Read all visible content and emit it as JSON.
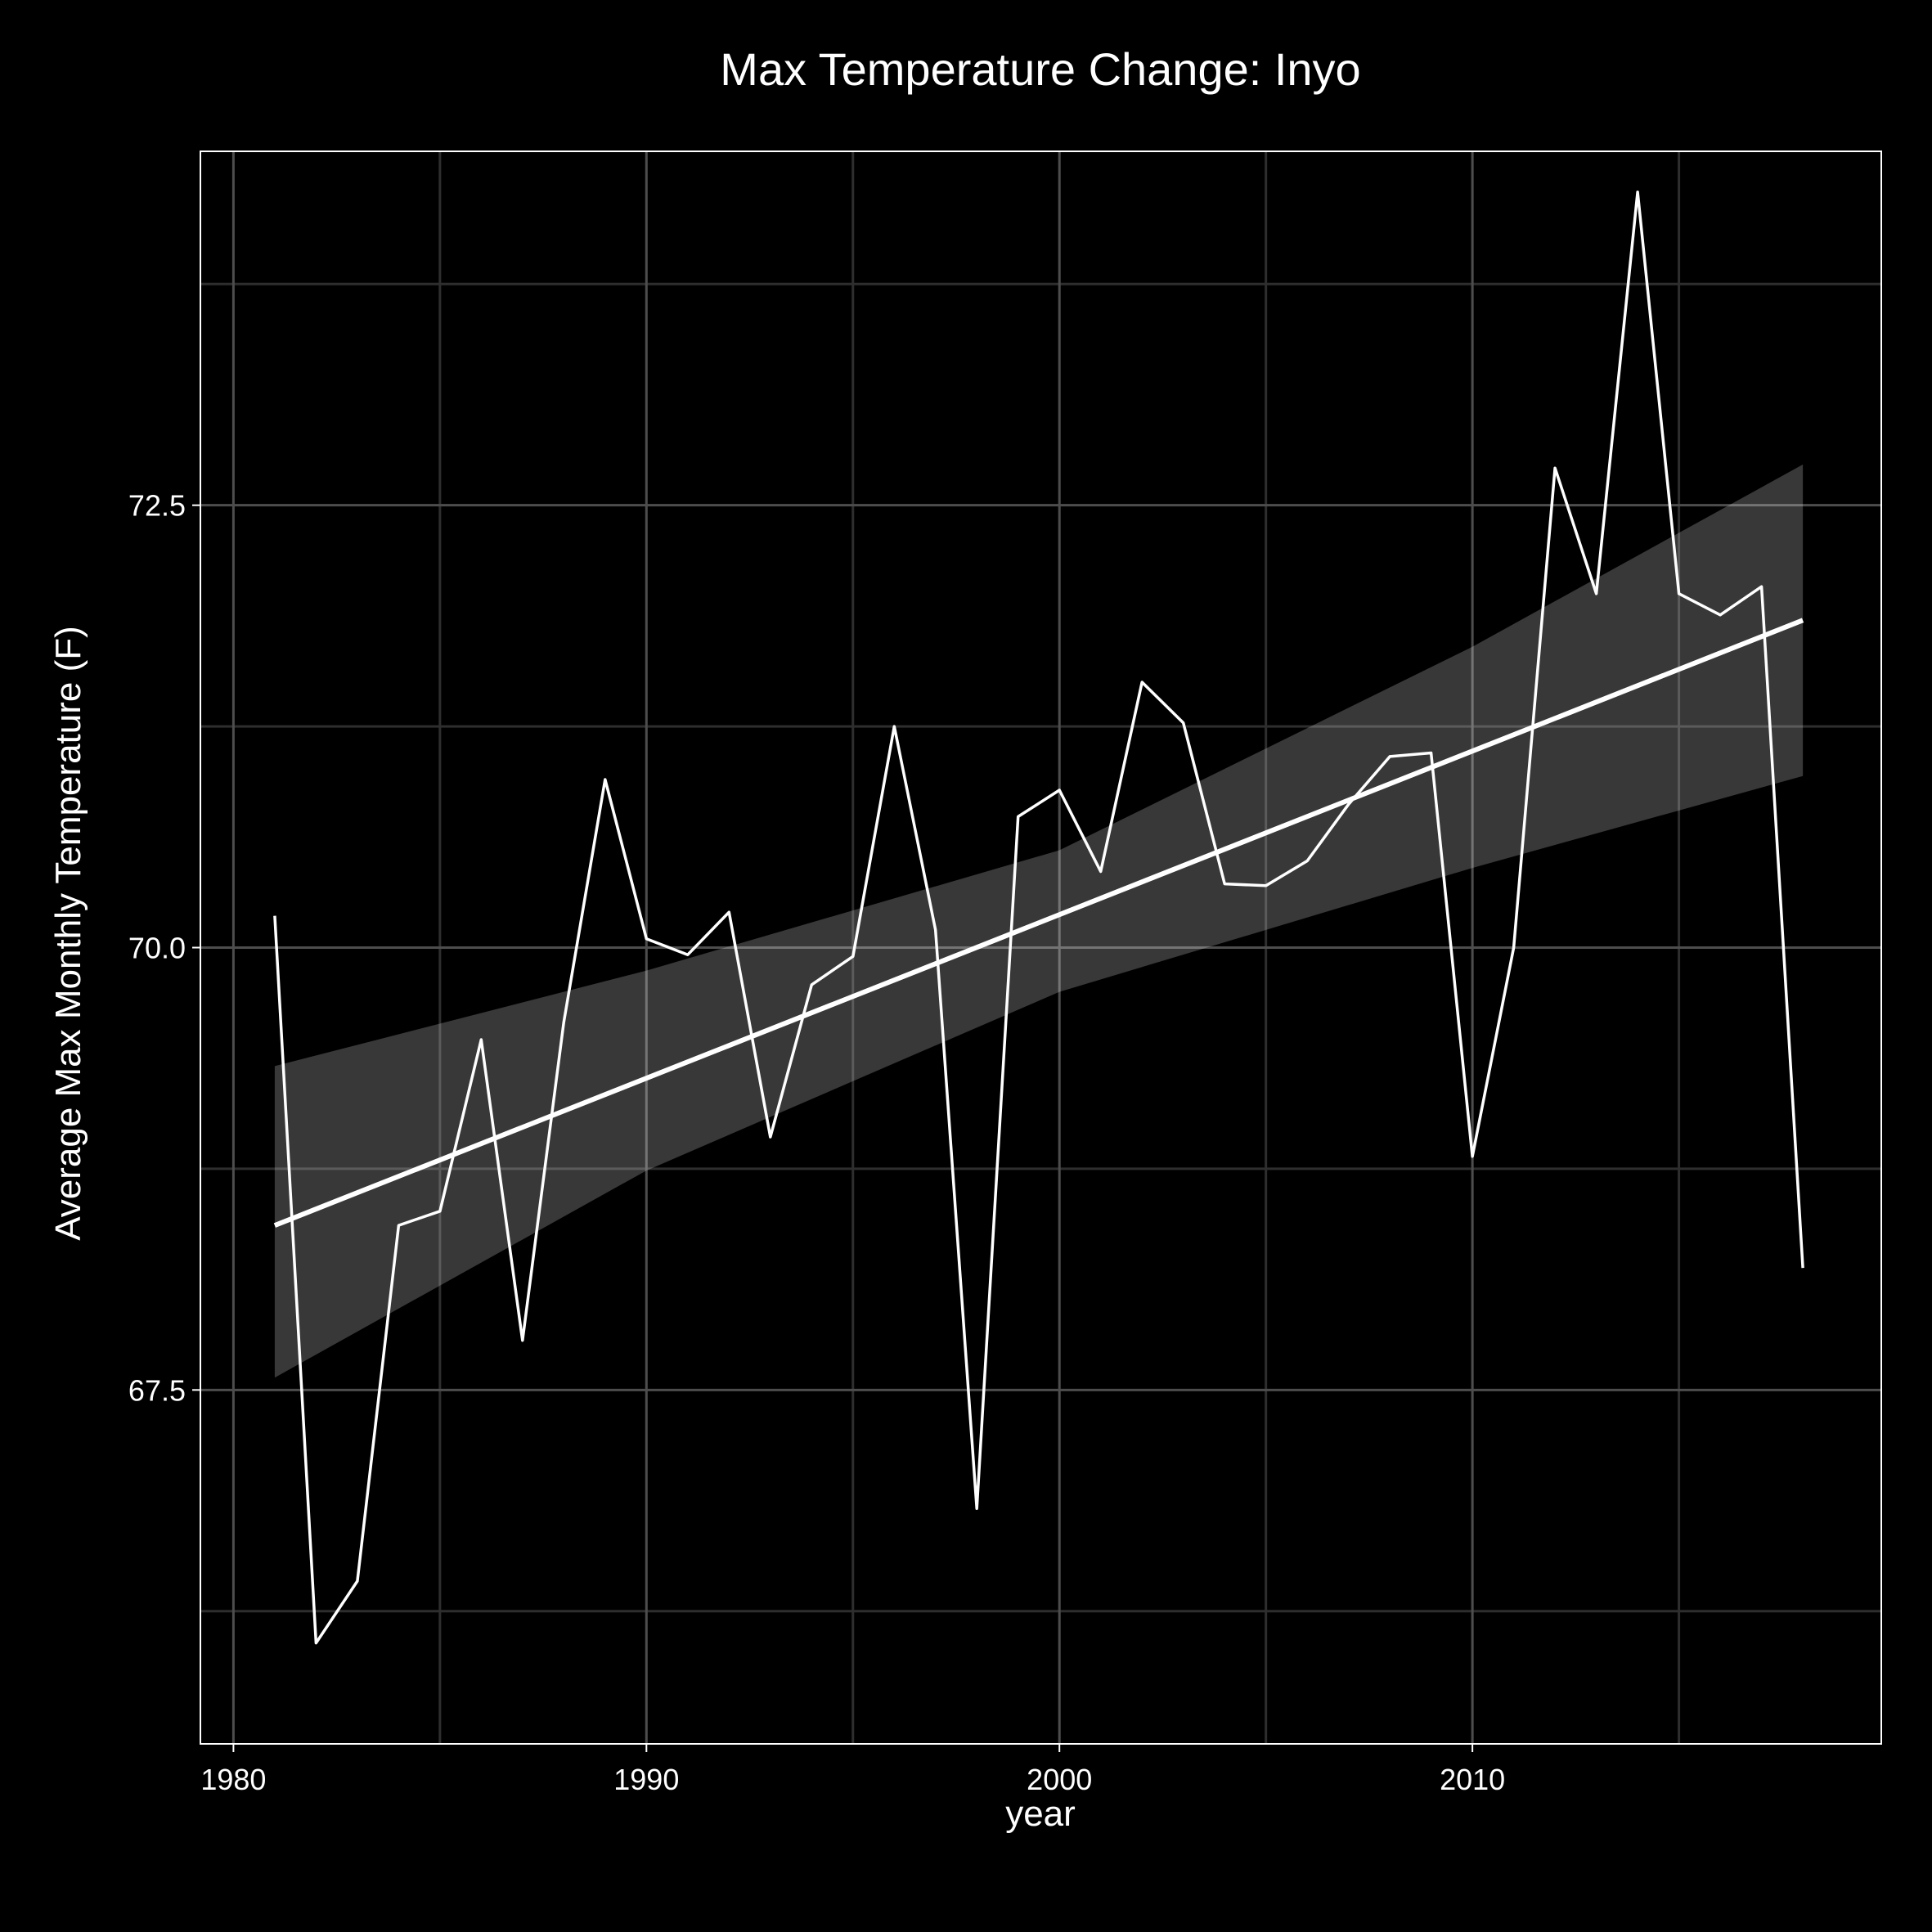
{
  "chart_data": {
    "type": "line",
    "title": "Max Temperature Change: Inyo",
    "xlabel": "year",
    "ylabel": "Average Max Monthly Temperature (F)",
    "xlim": [
      1979.2,
      2019.9
    ],
    "ylim": [
      65.5,
      74.5
    ],
    "x_ticks": [
      1980,
      1990,
      2000,
      2010
    ],
    "x_tick_labels": [
      "1980",
      "1990",
      "2000",
      "2010"
    ],
    "x_minor_ticks": [
      1985,
      1995,
      2005,
      2015
    ],
    "y_ticks": [
      67.5,
      70.0,
      72.5
    ],
    "y_tick_labels": [
      "67.5",
      "70.0",
      "72.5"
    ],
    "y_minor_ticks": [
      66.25,
      68.75,
      71.25,
      73.75
    ],
    "grid": true,
    "legend": "none",
    "colors": {
      "background": "#000000",
      "text": "#ffffff",
      "border": "#ffffff",
      "grid_major": "#4d4d4d",
      "grid_minor": "#2e2e2e",
      "series_line": "#ffffff",
      "trend_line": "#ffffff",
      "confidence_band": "#ffffff"
    },
    "series": [
      {
        "x": [
          1981,
          1982,
          1983,
          1984,
          1985,
          1986,
          1987,
          1988,
          1989,
          1990,
          1991,
          1992,
          1993,
          1994,
          1995,
          1996,
          1997,
          1998,
          1999,
          2000,
          2001,
          2002,
          2003,
          2004,
          2005,
          2006,
          2007,
          2008,
          2009,
          2010,
          2011,
          2012,
          2013,
          2014,
          2015,
          2016,
          2017,
          2018
        ],
        "values": [
          70.18,
          66.07,
          66.42,
          68.43,
          68.51,
          69.48,
          67.78,
          69.58,
          70.95,
          70.05,
          69.96,
          70.2,
          68.93,
          69.79,
          69.95,
          71.25,
          70.1,
          66.83,
          70.74,
          70.89,
          70.43,
          71.5,
          71.27,
          70.36,
          70.35,
          70.49,
          70.81,
          71.08,
          71.1,
          68.82,
          70.0,
          72.71,
          72.0,
          74.27,
          72.0,
          71.88,
          72.04,
          68.19
        ]
      }
    ],
    "trend": {
      "x": [
        1981,
        2018
      ],
      "values": [
        68.43,
        71.85
      ],
      "band_x": [
        1981,
        1990,
        2000,
        2010,
        2018
      ],
      "band_lower": [
        67.57,
        68.74,
        69.75,
        70.45,
        70.97
      ],
      "band_upper": [
        69.33,
        69.87,
        70.55,
        71.7,
        72.73
      ]
    }
  }
}
